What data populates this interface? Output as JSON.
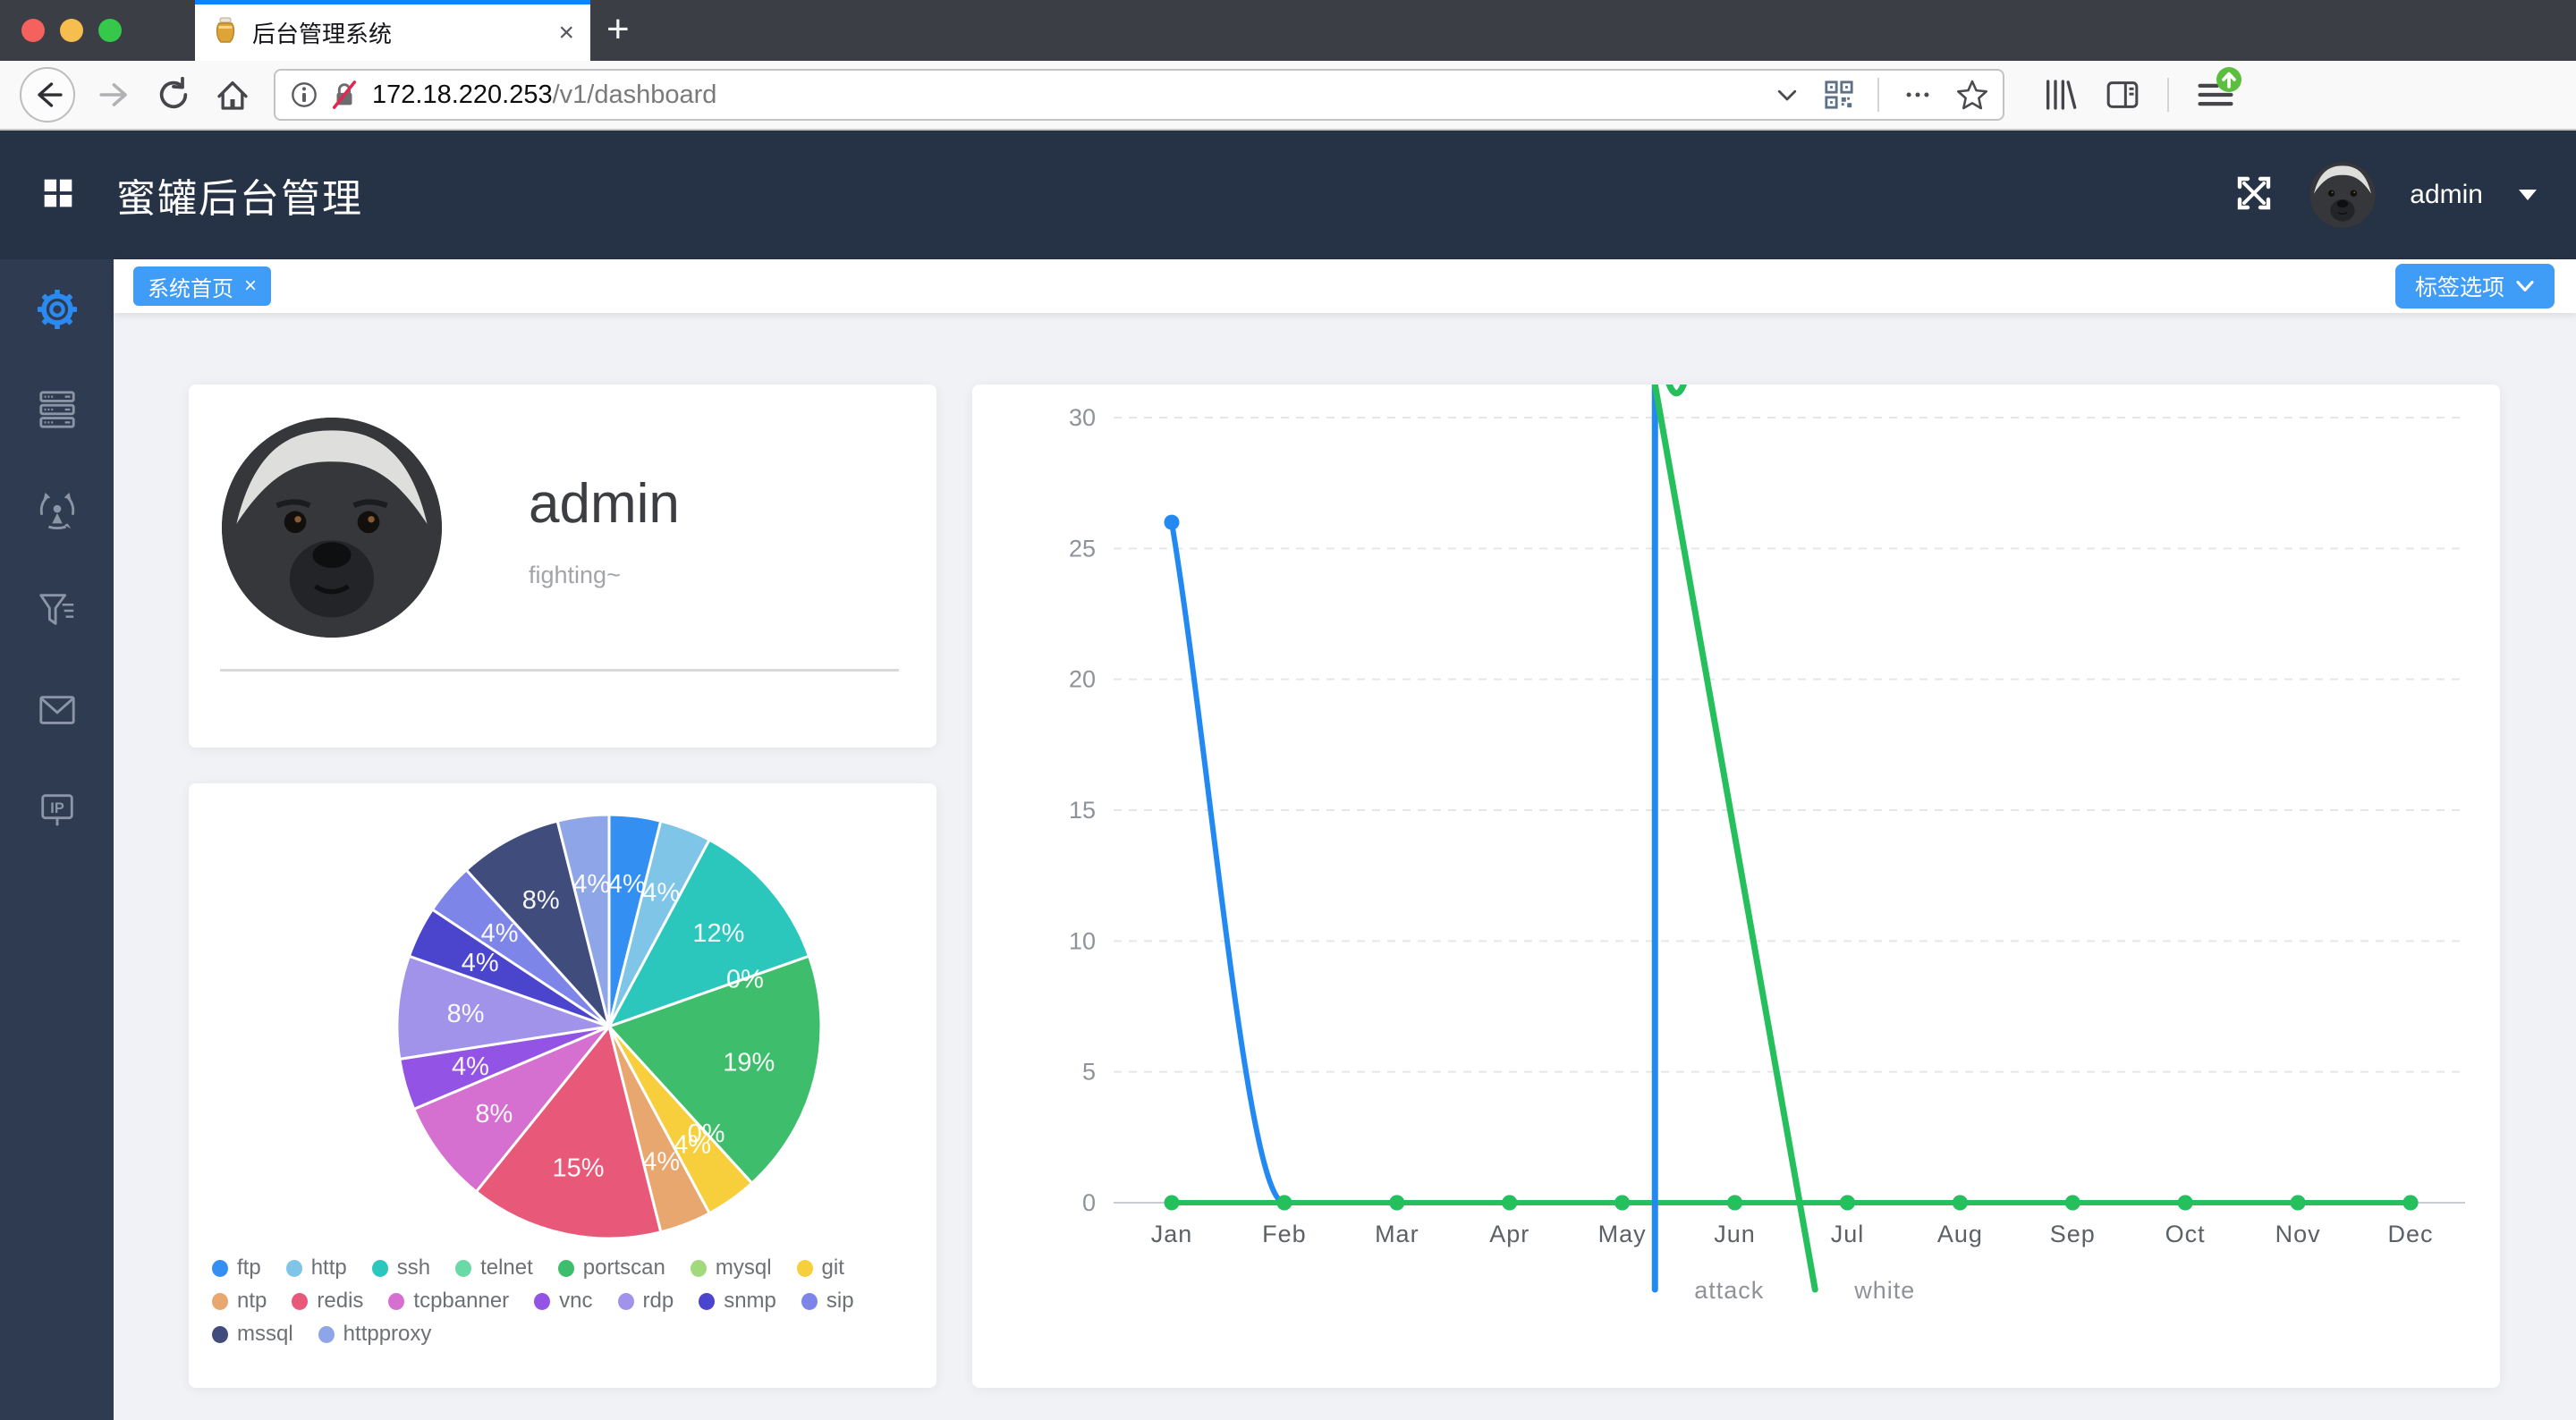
{
  "theme": {
    "accent": "#3f9cf7"
  },
  "browser": {
    "tab_title": "后台管理系统",
    "tab_close": "×",
    "new_tab": "+",
    "url_host": "172.18.220.253",
    "url_path": "/v1/dashboard"
  },
  "header": {
    "title": "蜜罐后台管理",
    "username": "admin"
  },
  "tag_bar": {
    "active_tag": "系统首页",
    "tag_close": "×",
    "options_button": "标签选项"
  },
  "profile": {
    "name": "admin",
    "motto": "fighting~"
  },
  "chart_data": [
    {
      "type": "pie",
      "title": "",
      "legend_position": "bottom-left",
      "label_format": "percent-inside",
      "slices": [
        {
          "label": "ftp",
          "percent": 4,
          "color": "#338ff2"
        },
        {
          "label": "http",
          "percent": 4,
          "color": "#7ec5e8"
        },
        {
          "label": "ssh",
          "percent": 12,
          "color": "#2bc7bc"
        },
        {
          "label": "telnet",
          "percent": 0,
          "color": "#69d9a5"
        },
        {
          "label": "portscan",
          "percent": 19,
          "color": "#3ebe6c"
        },
        {
          "label": "mysql",
          "percent": 0,
          "color": "#a0da7d"
        },
        {
          "label": "git",
          "percent": 4,
          "color": "#f7cf3c"
        },
        {
          "label": "ntp",
          "percent": 4,
          "color": "#e8a76e"
        },
        {
          "label": "redis",
          "percent": 15,
          "color": "#e85878"
        },
        {
          "label": "tcpbanner",
          "percent": 8,
          "color": "#d56fd0"
        },
        {
          "label": "vnc",
          "percent": 4,
          "color": "#9353e4"
        },
        {
          "label": "rdp",
          "percent": 8,
          "color": "#a192ea"
        },
        {
          "label": "snmp",
          "percent": 4,
          "color": "#4b44cc"
        },
        {
          "label": "sip",
          "percent": 4,
          "color": "#7e85e8"
        },
        {
          "label": "mssql",
          "percent": 8,
          "color": "#404c7c"
        },
        {
          "label": "httpproxy",
          "percent": 4,
          "color": "#8ea6e8"
        }
      ],
      "legend_rows": [
        [
          0,
          1,
          2,
          3,
          4,
          5,
          6
        ],
        [
          7,
          8,
          9,
          10,
          11,
          12,
          13
        ],
        [
          14,
          15
        ]
      ]
    },
    {
      "type": "line",
      "smooth": true,
      "categories": [
        "Jan",
        "Feb",
        "Mar",
        "Apr",
        "May",
        "Jun",
        "Jul",
        "Aug",
        "Sep",
        "Oct",
        "Nov",
        "Dec"
      ],
      "series": [
        {
          "name": "attack",
          "color": "#2289f2",
          "values": [
            26,
            0,
            0,
            0,
            0,
            0,
            0,
            0,
            0,
            0,
            0,
            0
          ]
        },
        {
          "name": "white",
          "color": "#25c05c",
          "values": [
            0,
            0,
            0,
            0,
            0,
            0,
            0,
            0,
            0,
            0,
            0,
            0
          ]
        }
      ],
      "ylim": [
        0,
        30
      ],
      "yticks": [
        0,
        5,
        10,
        15,
        20,
        25,
        30
      ],
      "grid": "dashed-horizontal",
      "legend_position": "bottom"
    }
  ]
}
